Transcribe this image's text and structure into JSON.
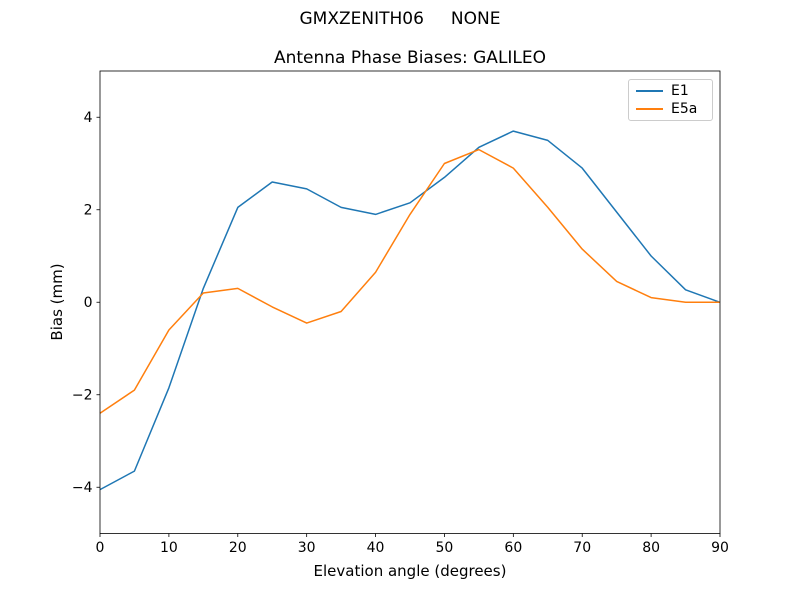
{
  "figure": {
    "suptitle": "GMXZENITH06     NONE",
    "title": "Antenna Phase Biases: GALILEO"
  },
  "chart_data": {
    "type": "line",
    "suptitle": "GMXZENITH06     NONE",
    "title": "Antenna Phase Biases: GALILEO",
    "xlabel": "Elevation angle (degrees)",
    "ylabel": "Bias (mm)",
    "xlim": [
      0,
      90
    ],
    "ylim": [
      -5,
      5
    ],
    "x_ticks": [
      0,
      10,
      20,
      30,
      40,
      50,
      60,
      70,
      80,
      90
    ],
    "x_tick_labels": [
      "0",
      "10",
      "20",
      "30",
      "40",
      "50",
      "60",
      "70",
      "80",
      "90"
    ],
    "y_ticks": [
      -4,
      -2,
      0,
      2,
      4
    ],
    "y_tick_labels": [
      "−4",
      "−2",
      "0",
      "2",
      "4"
    ],
    "grid": false,
    "legend_position": "upper right",
    "x": [
      0,
      5,
      10,
      15,
      20,
      25,
      30,
      35,
      40,
      45,
      50,
      55,
      60,
      65,
      70,
      75,
      80,
      85,
      90
    ],
    "series": [
      {
        "name": "E1",
        "color": "#1f77b4",
        "values": [
          -4.05,
          -3.65,
          -1.85,
          0.3,
          2.05,
          2.6,
          2.45,
          2.05,
          1.9,
          2.15,
          2.7,
          3.35,
          3.7,
          3.5,
          2.9,
          1.95,
          1.0,
          0.27,
          0.0
        ]
      },
      {
        "name": "E5a",
        "color": "#ff7f0e",
        "values": [
          -2.4,
          -1.9,
          -0.6,
          0.2,
          0.3,
          -0.1,
          -0.45,
          -0.2,
          0.65,
          1.9,
          3.0,
          3.3,
          2.9,
          2.05,
          1.15,
          0.45,
          0.1,
          0.0,
          0.0
        ]
      }
    ],
    "axis_color": "#000000",
    "background_color": "#ffffff"
  }
}
